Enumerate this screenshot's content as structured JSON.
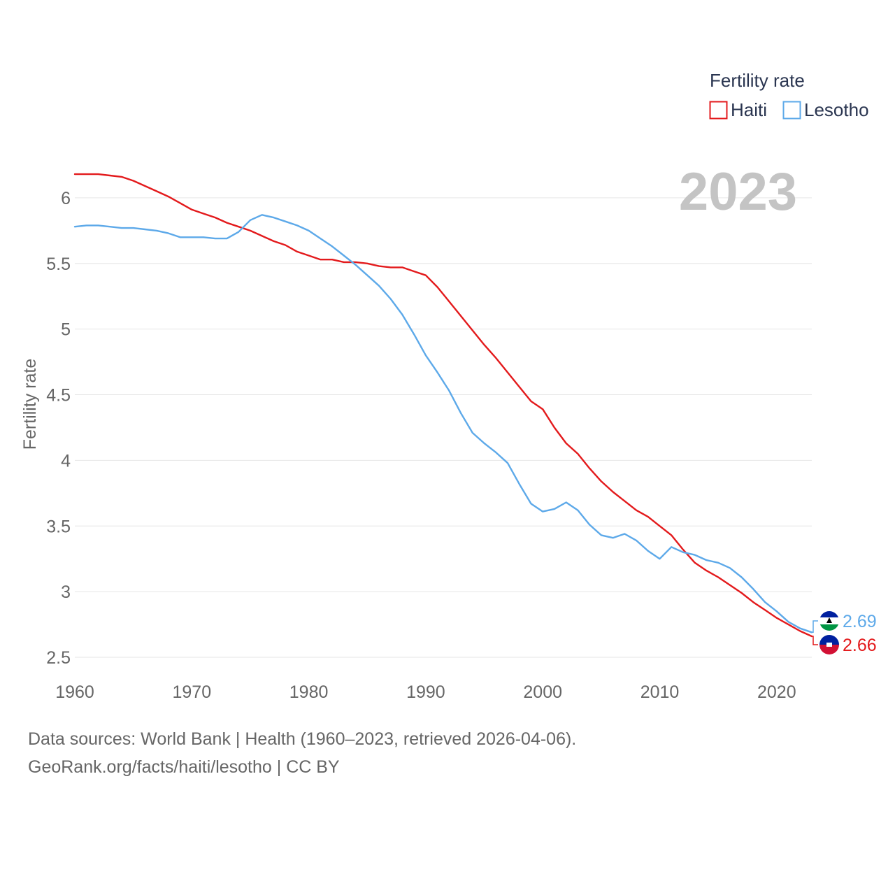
{
  "chart_data": {
    "type": "line",
    "title": "",
    "xlabel": "",
    "ylabel": "Fertility rate",
    "xlim": [
      1960,
      2023
    ],
    "ylim": [
      2.5,
      6.25
    ],
    "x_ticks": [
      1960,
      1970,
      1980,
      1990,
      2000,
      2010,
      2020
    ],
    "y_ticks": [
      2.5,
      3,
      3.5,
      4,
      4.5,
      5,
      5.5,
      6
    ],
    "grid": true,
    "year_label": "2023",
    "legend": {
      "title": "Fertility rate",
      "position": "top-right"
    },
    "x": [
      1960,
      1961,
      1962,
      1963,
      1964,
      1965,
      1966,
      1967,
      1968,
      1969,
      1970,
      1971,
      1972,
      1973,
      1974,
      1975,
      1976,
      1977,
      1978,
      1979,
      1980,
      1981,
      1982,
      1983,
      1984,
      1985,
      1986,
      1987,
      1988,
      1989,
      1990,
      1991,
      1992,
      1993,
      1994,
      1995,
      1996,
      1997,
      1998,
      1999,
      2000,
      2001,
      2002,
      2003,
      2004,
      2005,
      2006,
      2007,
      2008,
      2009,
      2010,
      2011,
      2012,
      2013,
      2014,
      2015,
      2016,
      2017,
      2018,
      2019,
      2020,
      2021,
      2022,
      2023
    ],
    "series": [
      {
        "name": "Haiti",
        "color": "#e31a1c",
        "end_value": "2.66",
        "values": [
          6.18,
          6.18,
          6.18,
          6.17,
          6.16,
          6.13,
          6.09,
          6.05,
          6.01,
          5.96,
          5.91,
          5.88,
          5.85,
          5.81,
          5.78,
          5.75,
          5.71,
          5.67,
          5.64,
          5.59,
          5.56,
          5.53,
          5.53,
          5.51,
          5.51,
          5.5,
          5.48,
          5.47,
          5.47,
          5.44,
          5.41,
          5.32,
          5.21,
          5.1,
          4.99,
          4.88,
          4.78,
          4.67,
          4.56,
          4.45,
          4.39,
          4.25,
          4.13,
          4.05,
          3.94,
          3.84,
          3.76,
          3.69,
          3.62,
          3.57,
          3.5,
          3.43,
          3.32,
          3.22,
          3.16,
          3.11,
          3.05,
          2.99,
          2.92,
          2.86,
          2.8,
          2.75,
          2.7,
          2.66
        ]
      },
      {
        "name": "Lesotho",
        "color": "#5da9e9",
        "end_value": "2.69",
        "values": [
          5.78,
          5.79,
          5.79,
          5.78,
          5.77,
          5.77,
          5.76,
          5.75,
          5.73,
          5.7,
          5.7,
          5.7,
          5.69,
          5.69,
          5.74,
          5.83,
          5.87,
          5.85,
          5.82,
          5.79,
          5.75,
          5.69,
          5.63,
          5.56,
          5.49,
          5.41,
          5.33,
          5.23,
          5.11,
          4.96,
          4.8,
          4.67,
          4.53,
          4.36,
          4.21,
          4.13,
          4.06,
          3.98,
          3.82,
          3.67,
          3.61,
          3.63,
          3.68,
          3.62,
          3.51,
          3.43,
          3.41,
          3.44,
          3.39,
          3.31,
          3.25,
          3.34,
          3.3,
          3.28,
          3.24,
          3.22,
          3.18,
          3.11,
          3.02,
          2.92,
          2.85,
          2.77,
          2.72,
          2.69
        ]
      }
    ]
  },
  "footer": {
    "line1": "Data sources: World Bank | Health (1960–2023, retrieved 2026-04-06).",
    "line2": "GeoRank.org/facts/haiti/lesotho | CC BY"
  },
  "flags": {
    "lesotho": {
      "icon": "lesotho-flag-icon",
      "colors": [
        "#00209f",
        "#ffffff",
        "#009543"
      ]
    },
    "haiti": {
      "icon": "haiti-flag-icon",
      "colors": [
        "#00209f",
        "#d21034"
      ]
    }
  }
}
